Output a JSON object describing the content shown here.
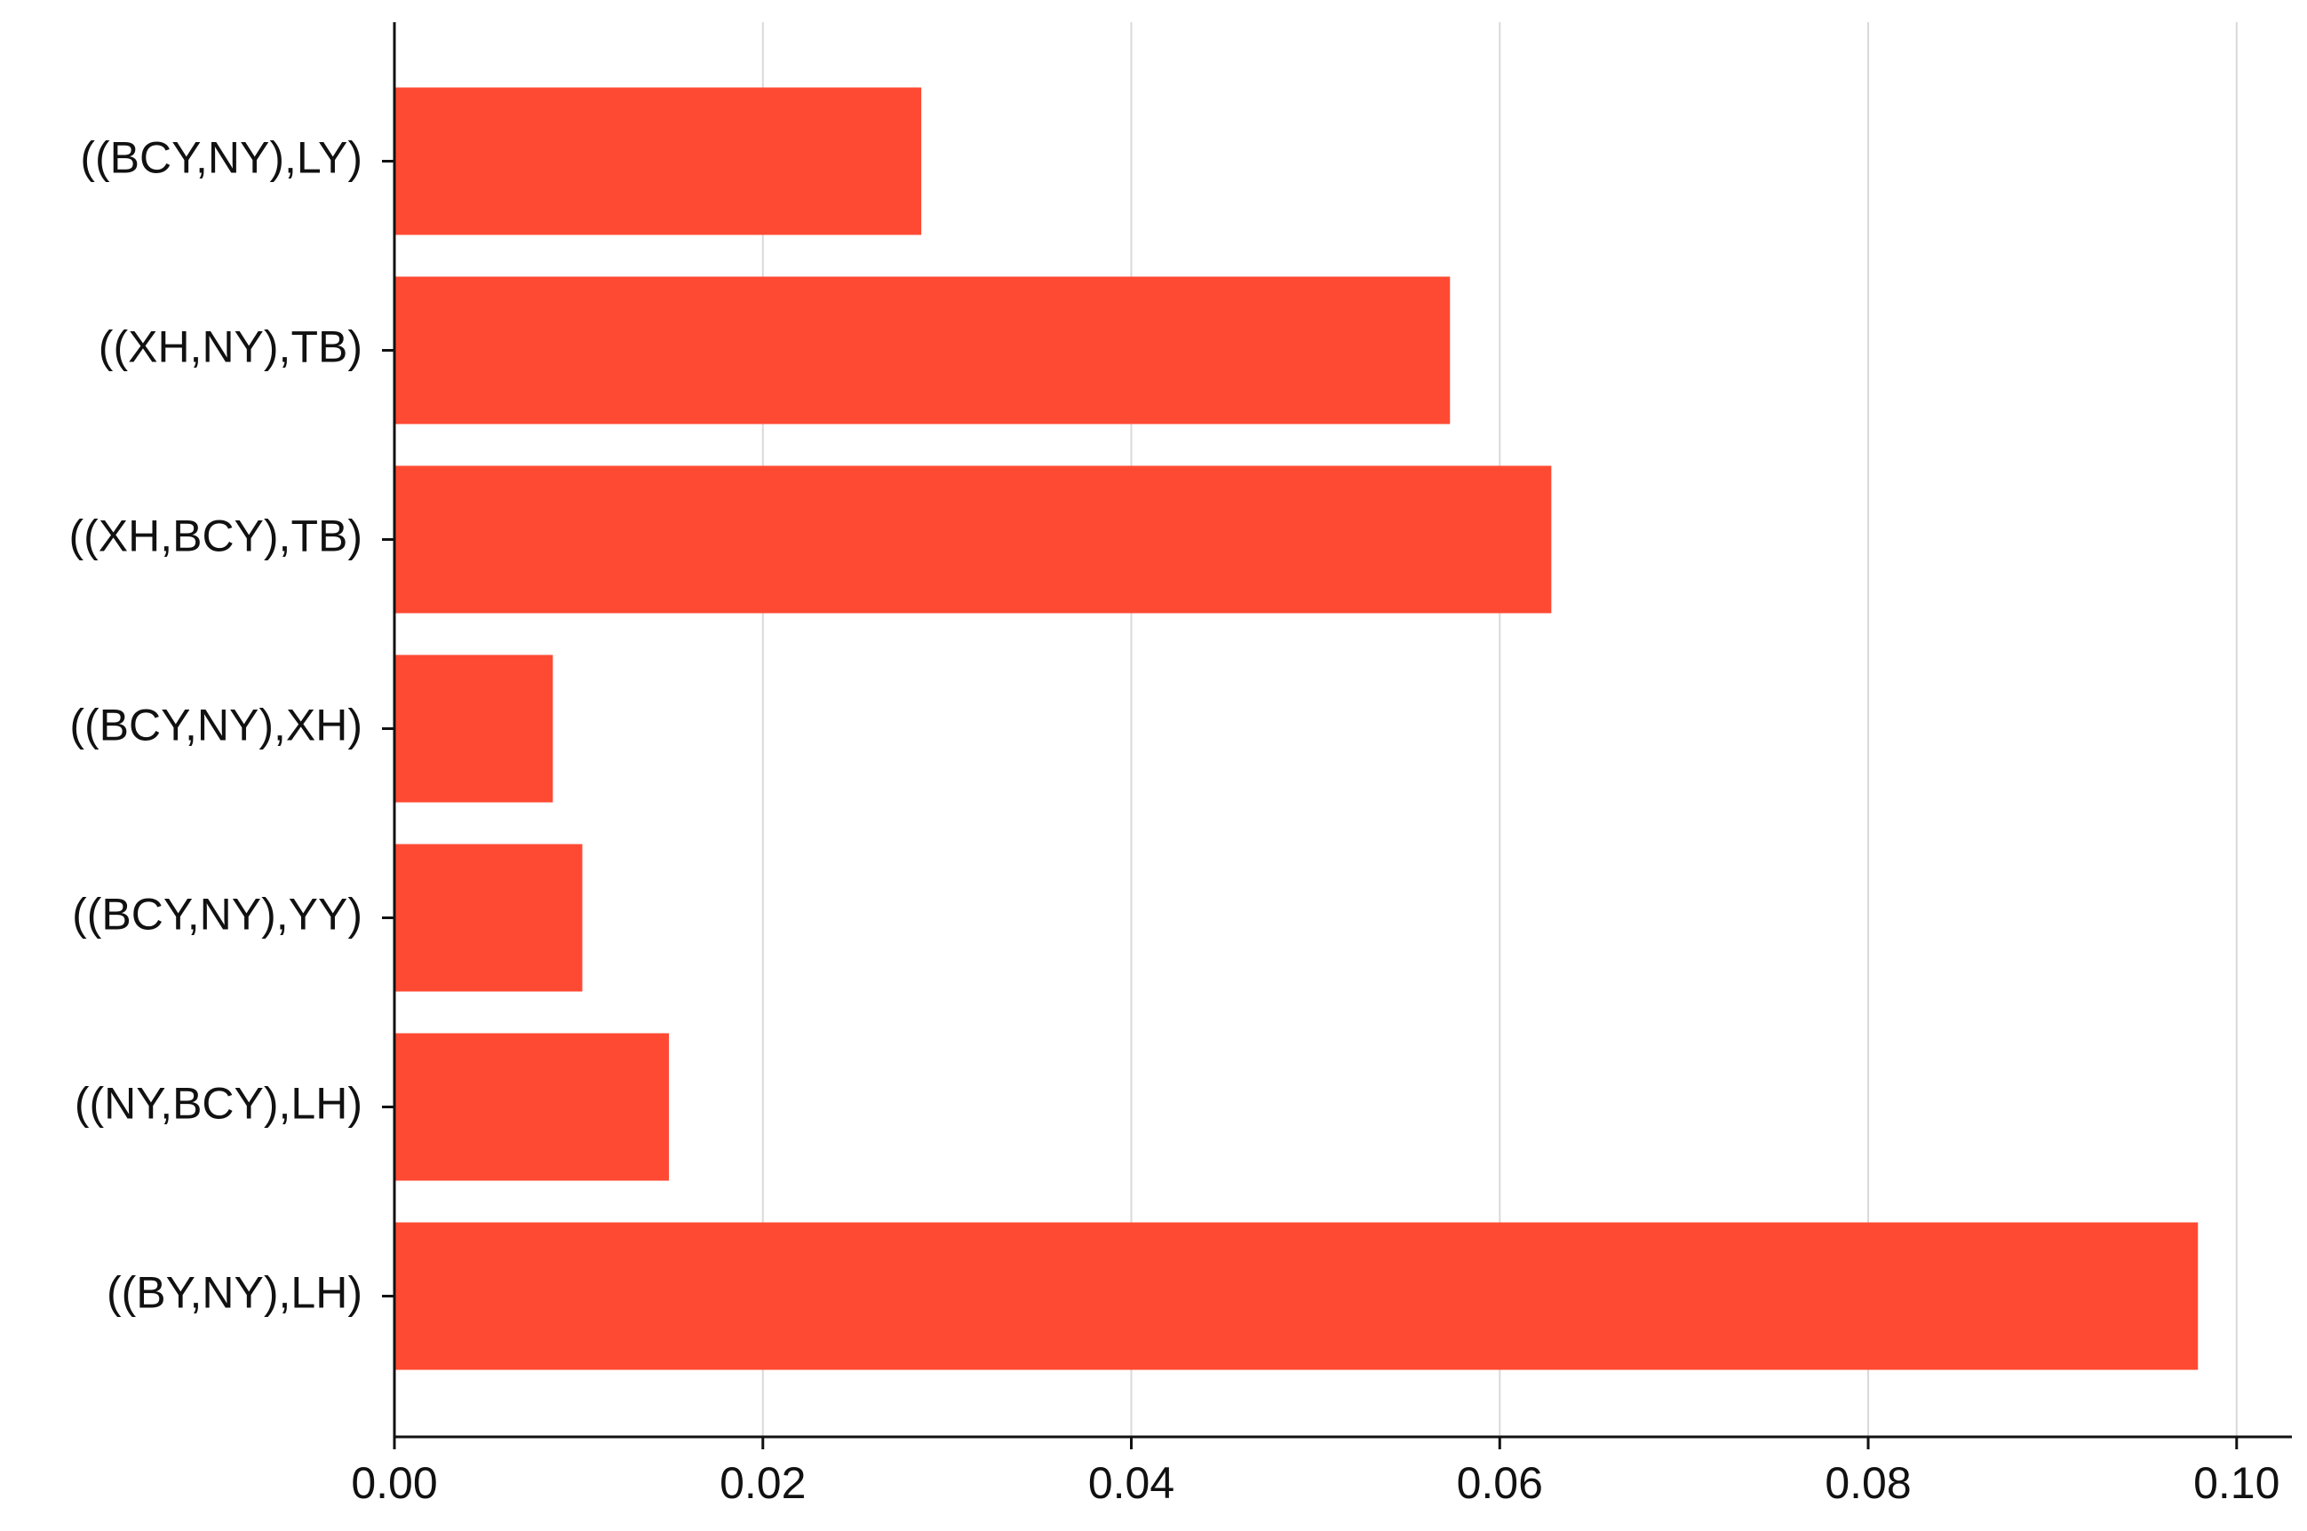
{
  "chart_data": {
    "type": "barh",
    "categories": [
      "((BCY,NY),LY)",
      "((XH,NY),TB)",
      "((XH,BCY),TB)",
      "((BCY,NY),XH)",
      "((BCY,NY),YY)",
      "((NY,BCY),LH)",
      "((BY,NY),LH)"
    ],
    "values": [
      0.0286,
      0.0573,
      0.0628,
      0.0086,
      0.0102,
      0.0149,
      0.0979
    ],
    "color": "#ff4a33",
    "xlim": [
      0,
      0.103
    ],
    "xticks": [
      {
        "value": 0,
        "label": "0.00"
      },
      {
        "value": 0.02,
        "label": "0.02"
      },
      {
        "value": 0.04,
        "label": "0.04"
      },
      {
        "value": 0.06,
        "label": "0.06"
      },
      {
        "value": 0.08,
        "label": "0.08"
      },
      {
        "value": 0.1,
        "label": "0.10"
      }
    ],
    "grid": true
  }
}
